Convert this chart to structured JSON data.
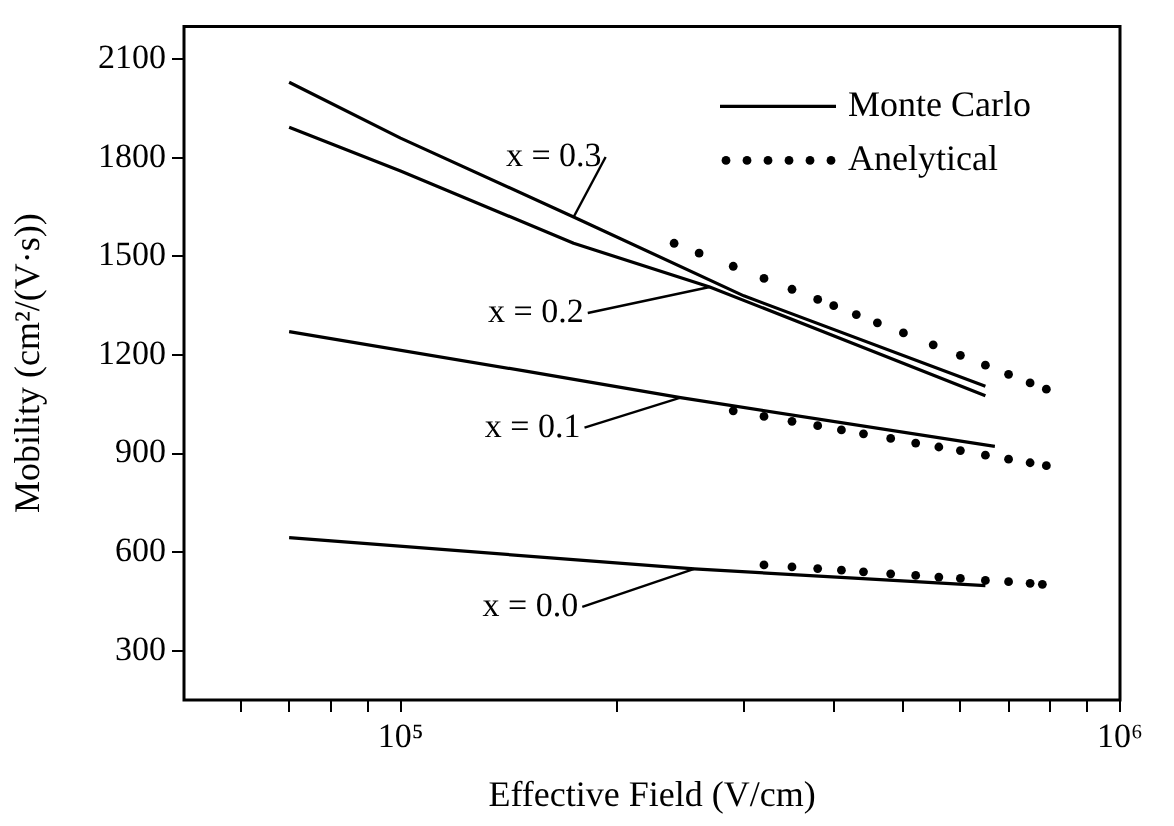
{
  "chart_data": {
    "type": "line",
    "xlabel": "Effective Field (V/cm)",
    "ylabel": "Mobility (cm²/(V·s))",
    "log": "x",
    "grid": false,
    "legend": "top right",
    "xlim": [
      50000,
      1000000
    ],
    "xticks": [
      {
        "value": 60000,
        "label": null
      },
      {
        "value": 70000,
        "label": null
      },
      {
        "value": 80000,
        "label": null
      },
      {
        "value": 90000,
        "label": null
      },
      {
        "value": 100000,
        "label": "10⁵"
      },
      {
        "value": 200000,
        "label": null
      },
      {
        "value": 300000,
        "label": null
      },
      {
        "value": 400000,
        "label": null
      },
      {
        "value": 500000,
        "label": null
      },
      {
        "value": 600000,
        "label": null
      },
      {
        "value": 700000,
        "label": null
      },
      {
        "value": 800000,
        "label": null
      },
      {
        "value": 900000,
        "label": null
      },
      {
        "value": 1000000,
        "label": "10⁶"
      }
    ],
    "ylim": [
      150,
      2200
    ],
    "yticks": [
      300,
      600,
      900,
      1200,
      1500,
      1800,
      2100
    ],
    "series": [
      {
        "name": "Monte Carlo",
        "line_style": "solid",
        "marker": "none",
        "color": "#000000",
        "x": [
          70000,
          100000,
          174000,
          300000,
          650000
        ],
        "values": [
          2030,
          1860,
          1620,
          1380,
          1105
        ]
      },
      {
        "line_style": "solid",
        "marker": "none",
        "color": "#000000",
        "x": [
          70000,
          100000,
          174000,
          269000,
          650000
        ],
        "values": [
          1893,
          1760,
          1540,
          1407,
          1076
        ]
      },
      {
        "line_style": "solid",
        "marker": "none",
        "color": "#000000",
        "x": [
          70000,
          150000,
          245000,
          670000
        ],
        "values": [
          1271,
          1150,
          1070,
          922
        ]
      },
      {
        "line_style": "solid",
        "marker": "none",
        "color": "#000000",
        "x": [
          70000,
          256000,
          650000
        ],
        "values": [
          644,
          549,
          498
        ]
      },
      {
        "name": "Anelytical",
        "type": "scatter",
        "marker": "circle",
        "color": "#000000",
        "x": [
          240000,
          260000,
          290000,
          320000,
          350000,
          380000,
          400000,
          430000,
          460000,
          500000,
          550000,
          600000,
          650000,
          700000,
          750000,
          790000
        ],
        "values": [
          1540,
          1510,
          1470,
          1433,
          1400,
          1369,
          1350,
          1323,
          1298,
          1267,
          1231,
          1199,
          1169,
          1141,
          1115,
          1096
        ]
      },
      {
        "type": "scatter",
        "marker": "circle",
        "color": "#000000",
        "x": [
          290000,
          320000,
          350000,
          380000,
          410000,
          440000,
          480000,
          520000,
          560000,
          600000,
          650000,
          700000,
          750000,
          790000
        ],
        "values": [
          1030,
          1013,
          998,
          985,
          972,
          960,
          946,
          932,
          920,
          909,
          895,
          883,
          872,
          863
        ]
      },
      {
        "type": "scatter",
        "marker": "circle",
        "color": "#000000",
        "x": [
          320000,
          350000,
          380000,
          410000,
          440000,
          480000,
          520000,
          560000,
          600000,
          650000,
          700000,
          750000,
          780000
        ],
        "values": [
          561,
          555,
          550,
          545,
          540,
          534,
          529,
          524,
          520,
          514,
          510,
          505,
          502
        ]
      }
    ],
    "annotations": [
      {
        "text": "x = 0.3",
        "x": 174000,
        "y": 1620
      },
      {
        "text": "x = 0.2",
        "x": 269000,
        "y": 1407
      },
      {
        "text": "x = 0.1",
        "x": 245000,
        "y": 1070
      },
      {
        "text": "x = 0.0",
        "x": 256000,
        "y": 549
      }
    ]
  }
}
